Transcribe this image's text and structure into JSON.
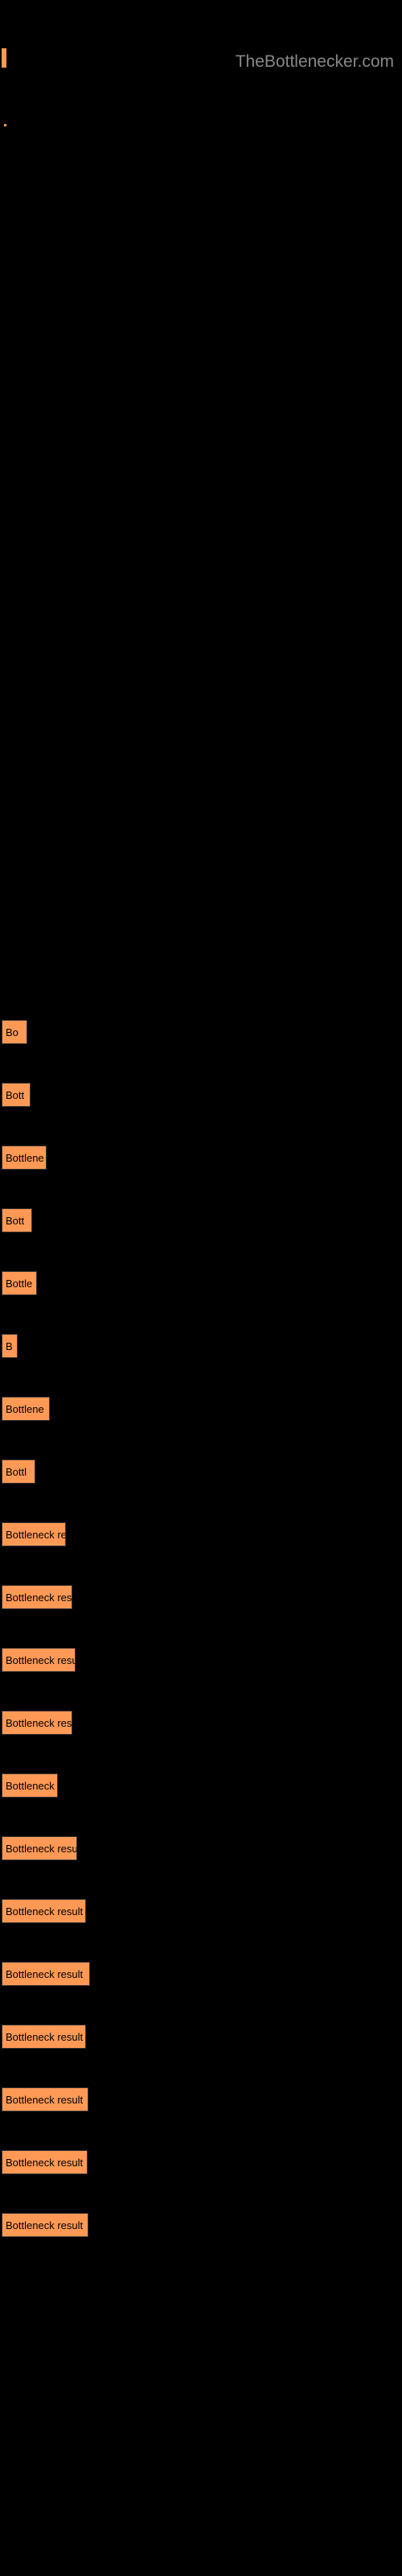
{
  "watermark": "TheBottlenecker.com",
  "bars": [
    {
      "width": 32,
      "label": "Bo"
    },
    {
      "width": 36,
      "label": "Bott"
    },
    {
      "width": 56,
      "label": "Bottlene"
    },
    {
      "width": 38,
      "label": "Bott"
    },
    {
      "width": 44,
      "label": "Bottle"
    },
    {
      "width": 20,
      "label": "B"
    },
    {
      "width": 60,
      "label": "Bottlene"
    },
    {
      "width": 42,
      "label": "Bottl"
    },
    {
      "width": 80,
      "label": "Bottleneck re"
    },
    {
      "width": 88,
      "label": "Bottleneck res"
    },
    {
      "width": 92,
      "label": "Bottleneck resu"
    },
    {
      "width": 88,
      "label": "Bottleneck res"
    },
    {
      "width": 70,
      "label": "Bottleneck"
    },
    {
      "width": 94,
      "label": "Bottleneck resu"
    },
    {
      "width": 105,
      "label": "Bottleneck result"
    },
    {
      "width": 110,
      "label": "Bottleneck result "
    },
    {
      "width": 105,
      "label": "Bottleneck result"
    },
    {
      "width": 108,
      "label": "Bottleneck result"
    },
    {
      "width": 107,
      "label": "Bottleneck result"
    },
    {
      "width": 108,
      "label": "Bottleneck result"
    }
  ],
  "colors": {
    "background": "#000000",
    "bar_fill": "#ff9955",
    "bar_border": "#333333",
    "text": "#000000",
    "watermark": "#888888"
  }
}
